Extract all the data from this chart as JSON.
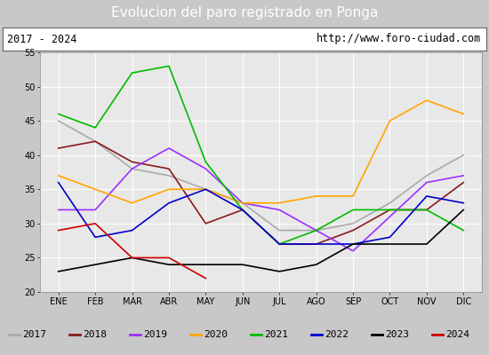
{
  "title": "Evolucion del paro registrado en Ponga",
  "subtitle_left": "2017 - 2024",
  "subtitle_right": "http://www.foro-ciudad.com",
  "months": [
    "ENE",
    "FEB",
    "MAR",
    "ABR",
    "MAY",
    "JUN",
    "JUL",
    "AGO",
    "SEP",
    "OCT",
    "NOV",
    "DIC"
  ],
  "ylim": [
    20,
    55
  ],
  "yticks": [
    20,
    25,
    30,
    35,
    40,
    45,
    50,
    55
  ],
  "series": {
    "2017": {
      "color": "#aaaaaa",
      "data": [
        45,
        42,
        38,
        37,
        35,
        33,
        29,
        29,
        30,
        33,
        37,
        40
      ]
    },
    "2018": {
      "color": "#8b1a1a",
      "data": [
        41,
        42,
        39,
        38,
        30,
        32,
        27,
        27,
        29,
        32,
        32,
        36
      ]
    },
    "2019": {
      "color": "#9b30ff",
      "data": [
        32,
        32,
        38,
        41,
        38,
        33,
        32,
        29,
        26,
        31,
        36,
        37
      ]
    },
    "2020": {
      "color": "#ffa500",
      "data": [
        37,
        35,
        33,
        35,
        35,
        33,
        33,
        34,
        34,
        45,
        48,
        46
      ]
    },
    "2021": {
      "color": "#00bb00",
      "data": [
        46,
        44,
        52,
        53,
        39,
        32,
        27,
        29,
        32,
        32,
        32,
        29
      ]
    },
    "2022": {
      "color": "#0000cc",
      "data": [
        36,
        28,
        29,
        33,
        35,
        32,
        27,
        27,
        27,
        28,
        34,
        33
      ]
    },
    "2023": {
      "color": "#000000",
      "data": [
        23,
        24,
        25,
        24,
        24,
        24,
        23,
        24,
        27,
        27,
        27,
        32
      ]
    },
    "2024": {
      "color": "#cc0000",
      "data": [
        29,
        30,
        25,
        25,
        22,
        null,
        null,
        null,
        null,
        null,
        null,
        null
      ]
    }
  },
  "title_bg": "#5b9bd5",
  "title_color": "white",
  "title_fontsize": 11,
  "header_bg": "#ffffff",
  "plot_bg": "#e8e8e8",
  "outer_bg": "#c8c8c8",
  "grid_color": "#ffffff",
  "tick_fontsize": 7,
  "legend_fontsize": 8
}
